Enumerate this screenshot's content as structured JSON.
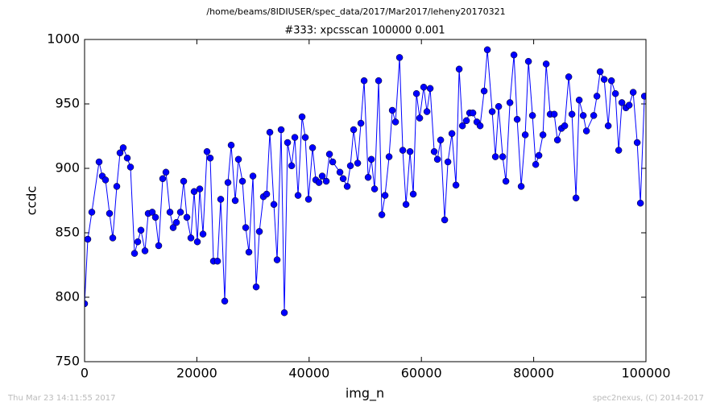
{
  "chart_data": {
    "type": "line",
    "suptitle": "/home/beams/8IDIUSER/spec_data/2017/Mar2017/leheny20170321",
    "title": "#333: xpcsscan 100000 0.001",
    "xlabel": "img_n",
    "ylabel": "ccdc",
    "footer_left": "Thu Mar 23 14:11:55 2017",
    "footer_right": "spec2nexus, (C) 2014-2017",
    "xlim": [
      0,
      100000
    ],
    "xticks": [
      0,
      20000,
      40000,
      60000,
      80000,
      100000
    ],
    "ylim": [
      750,
      1000
    ],
    "yticks": [
      750,
      800,
      850,
      900,
      950,
      1000
    ],
    "grid": false,
    "x": [
      0,
      574,
      1292,
      2583,
      3157,
      3731,
      4449,
      5023,
      5740,
      6314,
      6888,
      7606,
      8180,
      8897,
      9471,
      10045,
      10763,
      11337,
      12054,
      12628,
      13202,
      13920,
      14494,
      15211,
      15785,
      16359,
      17077,
      17651,
      18225,
      18942,
      19516,
      20090,
      20521,
      21095,
      21812,
      22386,
      22960,
      23678,
      24252,
      24969,
      25543,
      26117,
      26835,
      27409,
      28126,
      28700,
      29274,
      29992,
      30566,
      31140,
      31857,
      32431,
      33005,
      33723,
      34297,
      35014,
      35588,
      36162,
      36880,
      37454,
      38028,
      38745,
      39319,
      39893,
      40611,
      41185,
      41759,
      42333,
      43050,
      43624,
      44198,
      45490,
      46064,
      46781,
      47355,
      47929,
      48647,
      49221,
      49795,
      50512,
      51086,
      51660,
      52378,
      52952,
      53526,
      54243,
      54817,
      55391,
      56109,
      56683,
      57257,
      57974,
      58548,
      59122,
      59696,
      60414,
      60988,
      61562,
      62279,
      62853,
      63427,
      64145,
      64719,
      65436,
      66154,
      66728,
      67302,
      68020,
      68594,
      69168,
      69885,
      70459,
      71176,
      71750,
      72611,
      73185,
      73759,
      74477,
      75051,
      75768,
      76486,
      77060,
      77777,
      78495,
      79069,
      79786,
      80360,
      80934,
      81652,
      82226,
      82943,
      83661,
      84235,
      84952,
      85526,
      86244,
      86818,
      87535,
      88109,
      88827,
      89401,
      90692,
      91266,
      91840,
      92561,
      93275,
      93849,
      94566,
      95140,
      95714,
      96432,
      97006,
      97723,
      98441,
      99015,
      99732
    ],
    "series": [
      {
        "name": "ccdc",
        "color": "#0000ff",
        "values": [
          795,
          845,
          866,
          905,
          894,
          891,
          865,
          846,
          886,
          912,
          916,
          908,
          901,
          834,
          843,
          852,
          836,
          865,
          866,
          862,
          840,
          892,
          897,
          866,
          854,
          858,
          866,
          890,
          862,
          846,
          882,
          843,
          884,
          849,
          913,
          908,
          828,
          828,
          876,
          797,
          889,
          918,
          875,
          907,
          890,
          854,
          835,
          894,
          808,
          851,
          878,
          880,
          928,
          872,
          829,
          930,
          788,
          920,
          902,
          924,
          879,
          940,
          924,
          876,
          916,
          891,
          889,
          894,
          890,
          911,
          905,
          897,
          892,
          886,
          902,
          930,
          904,
          935,
          968,
          893,
          907,
          884,
          968,
          864,
          879,
          909,
          945,
          936,
          986,
          914,
          872,
          913,
          880,
          958,
          939,
          963,
          944,
          962,
          913,
          907,
          922,
          860,
          905,
          927,
          887,
          977,
          933,
          937,
          943,
          943,
          936,
          933,
          960,
          992,
          944,
          909,
          948,
          909,
          890,
          951,
          988,
          938,
          886,
          926,
          983,
          941,
          903,
          910,
          926,
          981,
          942,
          942,
          922,
          931,
          933,
          971,
          942,
          877,
          953,
          941,
          929,
          941,
          956,
          975,
          969,
          933,
          968,
          958,
          914,
          951,
          947,
          949,
          959,
          920,
          873,
          956
        ]
      }
    ]
  }
}
